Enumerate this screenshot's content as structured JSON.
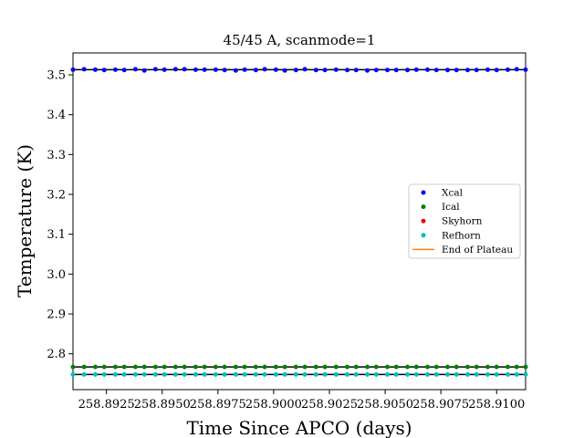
{
  "chart_data": {
    "type": "scatter",
    "title": "45/45 A, scanmode=1",
    "xlabel": "Time Since APCO (days)",
    "ylabel": "Temperature (K)",
    "xlim": [
      258.891,
      258.9113
    ],
    "ylim": [
      2.71,
      3.555
    ],
    "xticks": [
      258.8925,
      258.895,
      258.8975,
      258.9,
      258.9025,
      258.905,
      258.9075,
      258.91
    ],
    "xtick_labels": [
      "258.8925",
      "258.8950",
      "258.8975",
      "258.9000",
      "258.9025",
      "258.9050",
      "258.9075",
      "258.9100"
    ],
    "yticks": [
      2.8,
      2.9,
      3.0,
      3.1,
      3.2,
      3.3,
      3.4,
      3.5
    ],
    "ytick_labels": [
      "2.8",
      "2.9",
      "3.0",
      "3.1",
      "3.2",
      "3.3",
      "3.4",
      "3.5"
    ],
    "x": [
      258.891,
      258.8915,
      258.892,
      258.8924,
      258.8929,
      258.8933,
      258.8938,
      258.8942,
      258.8947,
      258.8951,
      258.8956,
      258.896,
      258.8965,
      258.8969,
      258.8974,
      258.8978,
      258.8983,
      258.8987,
      258.8992,
      258.8996,
      258.9001,
      258.9005,
      258.901,
      258.9014,
      258.9019,
      258.9023,
      258.9028,
      258.9033,
      258.9037,
      258.9042,
      258.9046,
      258.9051,
      258.9055,
      258.906,
      258.9064,
      258.9069,
      258.9073,
      258.9078,
      258.9082,
      258.9087,
      258.9091,
      258.9096,
      258.91,
      258.9105,
      258.9109,
      258.9113
    ],
    "series": [
      {
        "name": "Xcal",
        "color": "#0000ff",
        "values": [
          3.513,
          3.514,
          3.513,
          3.512,
          3.513,
          3.512,
          3.514,
          3.511,
          3.514,
          3.513,
          3.514,
          3.514,
          3.513,
          3.513,
          3.513,
          3.512,
          3.511,
          3.513,
          3.512,
          3.514,
          3.513,
          3.511,
          3.512,
          3.514,
          3.512,
          3.512,
          3.513,
          3.512,
          3.512,
          3.511,
          3.512,
          3.512,
          3.512,
          3.512,
          3.513,
          3.513,
          3.512,
          3.512,
          3.512,
          3.512,
          3.512,
          3.513,
          3.512,
          3.513,
          3.514,
          3.513
        ]
      },
      {
        "name": "Ical",
        "color": "#008000",
        "values": [
          2.767,
          2.767,
          2.767,
          2.767,
          2.767,
          2.767,
          2.767,
          2.767,
          2.767,
          2.767,
          2.767,
          2.767,
          2.767,
          2.767,
          2.767,
          2.767,
          2.767,
          2.767,
          2.767,
          2.767,
          2.767,
          2.767,
          2.767,
          2.767,
          2.767,
          2.767,
          2.767,
          2.767,
          2.767,
          2.767,
          2.767,
          2.767,
          2.767,
          2.767,
          2.767,
          2.767,
          2.767,
          2.767,
          2.767,
          2.767,
          2.767,
          2.767,
          2.767,
          2.767,
          2.767,
          2.767
        ]
      },
      {
        "name": "Skyhorn",
        "color": "#ff0000",
        "values": []
      },
      {
        "name": "Refhorn",
        "color": "#00bfbf",
        "values": [
          2.748,
          2.748,
          2.748,
          2.748,
          2.748,
          2.748,
          2.748,
          2.748,
          2.748,
          2.748,
          2.748,
          2.748,
          2.748,
          2.748,
          2.748,
          2.748,
          2.748,
          2.748,
          2.748,
          2.748,
          2.748,
          2.748,
          2.748,
          2.748,
          2.748,
          2.748,
          2.748,
          2.748,
          2.748,
          2.748,
          2.748,
          2.748,
          2.748,
          2.748,
          2.748,
          2.748,
          2.748,
          2.748,
          2.748,
          2.748,
          2.748,
          2.748,
          2.748,
          2.748,
          2.748,
          2.748
        ]
      }
    ],
    "reference_lines": [
      {
        "y": 3.513,
        "color": "#000000",
        "style": "solid"
      },
      {
        "y": 2.767,
        "color": "#000000",
        "style": "solid"
      },
      {
        "y": 2.748,
        "color": "#000000",
        "style": "solid"
      }
    ],
    "legend": {
      "position": "center-right",
      "entries": [
        {
          "label": "Xcal",
          "color": "#0000ff",
          "marker": "dot"
        },
        {
          "label": "Ical",
          "color": "#008000",
          "marker": "dot"
        },
        {
          "label": "Skyhorn",
          "color": "#ff0000",
          "marker": "dot"
        },
        {
          "label": "Refhorn",
          "color": "#00bfbf",
          "marker": "dot"
        },
        {
          "label": "End of Plateau",
          "color": "#ff7f0e",
          "marker": "line"
        }
      ]
    },
    "grid": false
  }
}
